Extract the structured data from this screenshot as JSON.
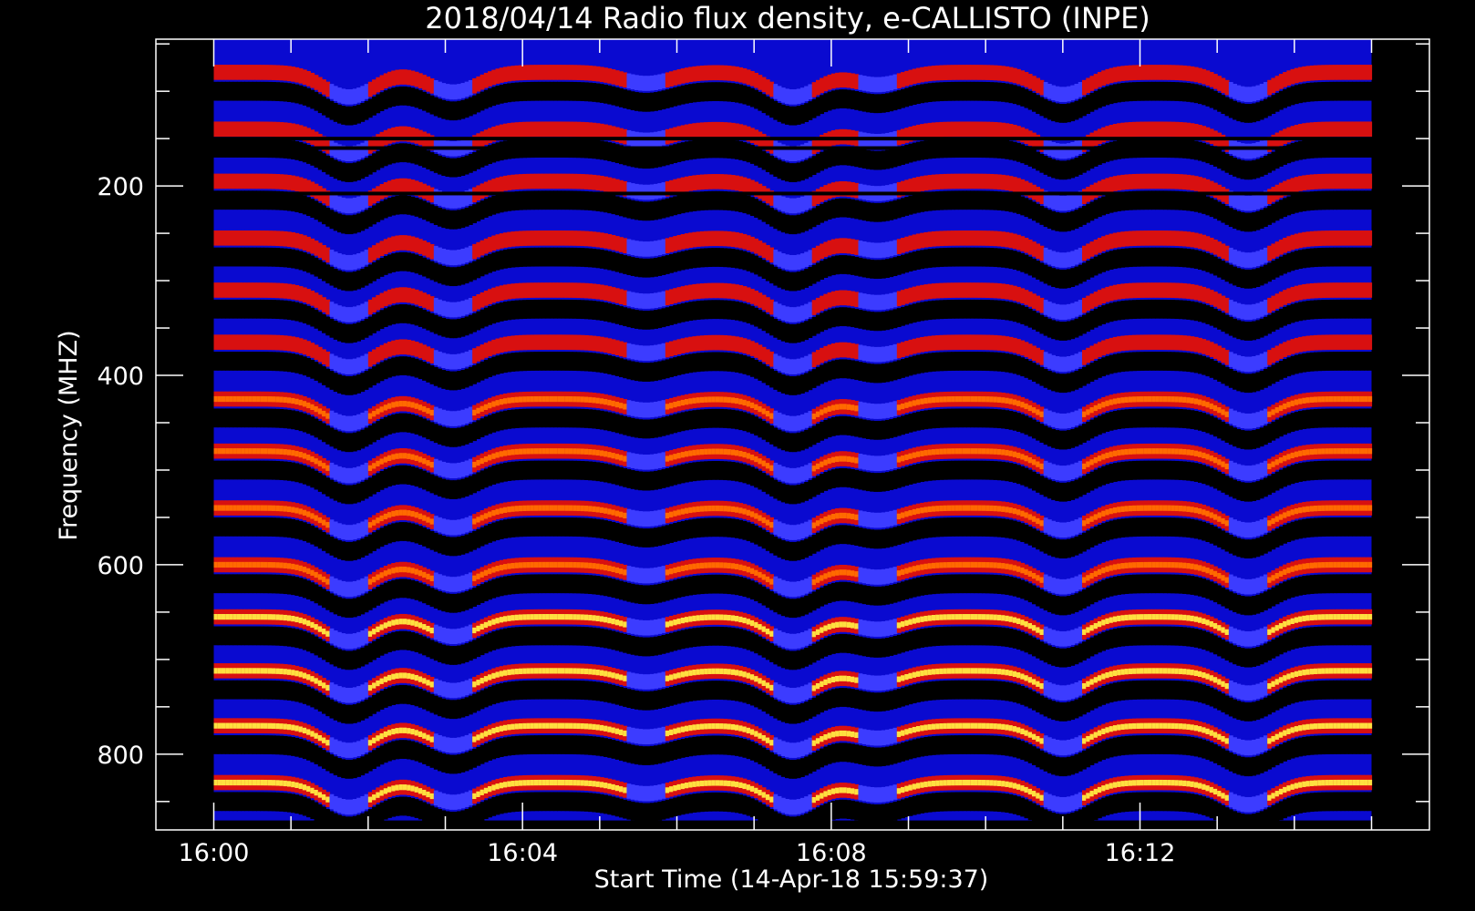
{
  "chart_data": {
    "type": "heatmap",
    "title": "2018/04/14  Radio flux density, e-CALLISTO (INPE)",
    "xlabel": "Start Time (14-Apr-18 15:59:37)",
    "ylabel": "Frequency (MHZ)",
    "x_ticks": [
      "16:00",
      "16:04",
      "16:08",
      "16:12"
    ],
    "y_ticks": [
      "200",
      "400",
      "600",
      "800"
    ],
    "xlim_minutes_after_1600": [
      -0.75,
      15.75
    ],
    "ylim_mhz": [
      45,
      880
    ],
    "data_extent": {
      "time": [
        "16:00",
        "16:15"
      ],
      "frequency_mhz": [
        45,
        870
      ]
    },
    "y_reversed": true,
    "colormap": [
      "#000000",
      "#0a0ad0",
      "#3c3cff",
      "#d81010",
      "#ff6a00",
      "#ffe040"
    ],
    "emission_bands_mhz": [
      80,
      140,
      195,
      255,
      310,
      365,
      425,
      480,
      540,
      600,
      655,
      712,
      770,
      830
    ],
    "band_arches": [
      {
        "center_min": 1.75,
        "depth": 1.0
      },
      {
        "center_min": 3.1,
        "depth": 0.8
      },
      {
        "center_min": 5.6,
        "depth": 0.45
      },
      {
        "center_min": 7.5,
        "depth": 1.0
      },
      {
        "center_min": 8.6,
        "depth": 0.5
      },
      {
        "center_min": 11.0,
        "depth": 0.9
      },
      {
        "center_min": 13.4,
        "depth": 0.9
      }
    ]
  }
}
